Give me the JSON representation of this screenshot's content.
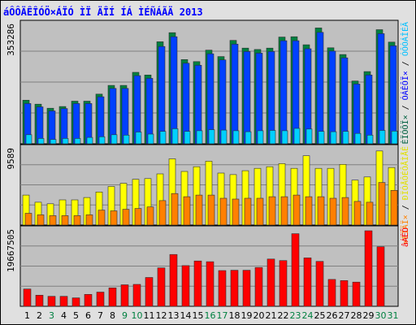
{
  "chart_data": {
    "type": "bar",
    "title": "áÔÔÄÊÎÓÖ×ÁÏÓ ÌÏ ÄÎÍ ÍÁ ÌÉÑÁÃÄ 2013",
    "categories": [
      "1",
      "2",
      "3",
      "4",
      "5",
      "6",
      "7",
      "8",
      "9",
      "10",
      "11",
      "12",
      "13",
      "14",
      "15",
      "16",
      "17",
      "18",
      "19",
      "20",
      "21",
      "22",
      "23",
      "24",
      "25",
      "26",
      "27",
      "28",
      "29",
      "30",
      "31"
    ],
    "weekend_days": [
      "3",
      "9",
      "10",
      "16",
      "17",
      "23",
      "24",
      "30",
      "31"
    ],
    "colors": {
      "background": "#e0e0e0",
      "panel": "#c0c0c0",
      "grid": "#808080",
      "title": "#0000ff",
      "day_weekday": "#000000",
      "day_weekend": "#008040"
    },
    "panels": [
      {
        "max_label": "353286",
        "ymax": 353286,
        "side_labels": [
          {
            "text": "ÈÏÓÔÏ×",
            "color": "#006040"
          },
          {
            "text": " / ",
            "color": "#000000"
          },
          {
            "text": "ÓÁÊÔÏ×",
            "color": "#0000ff"
          },
          {
            "text": " / ",
            "color": "#000000"
          },
          {
            "text": "ÓÔÒÁÎÉÃ",
            "color": "#00c0ff"
          }
        ],
        "series": [
          {
            "name": "hosts",
            "color": "#008040",
            "values": [
              130000,
              118000,
              106000,
              111000,
              127000,
              127000,
              148000,
              174000,
              174000,
              213000,
              205000,
              304000,
              331000,
              251000,
              245000,
              279000,
              260000,
              308000,
              285000,
              281000,
              285000,
              318000,
              319000,
              295000,
              345000,
              286000,
              266000,
              187000,
              215000,
              340000,
              303000
            ]
          },
          {
            "name": "sites",
            "color": "#0040ff",
            "values": [
              120000,
              110000,
              98000,
              105000,
              120000,
              120000,
              140000,
              165000,
              165000,
              203000,
              195000,
              290000,
              319000,
              240000,
              234000,
              268000,
              250000,
              297000,
              275000,
              270000,
              275000,
              307000,
              307000,
              283000,
              332000,
              276000,
              256000,
              178000,
              205000,
              328000,
              292000
            ]
          },
          {
            "name": "pages",
            "color": "#00d0ff",
            "values": [
              27000,
              16000,
              13000,
              16000,
              16000,
              19000,
              21000,
              27000,
              26000,
              35000,
              29000,
              37000,
              45000,
              37000,
              39000,
              42000,
              41000,
              39000,
              36000,
              39000,
              40000,
              39000,
              46000,
              44000,
              37000,
              36000,
              37000,
              31000,
              26000,
              40000,
              38000
            ]
          }
        ]
      },
      {
        "max_label": "9589",
        "ymax": 9589,
        "side_labels": [
          {
            "text": "×ÈÏÄÏ×",
            "color": "#ff8000"
          },
          {
            "text": " / ",
            "color": "#000000"
          },
          {
            "text": "ÐÏÓÅÔÉÔÅÌÅÊ",
            "color": "#e0e000"
          }
        ],
        "series": [
          {
            "name": "visitors",
            "color": "#ffff00",
            "values": [
              3800,
              2900,
              2700,
              3200,
              3200,
              3500,
              4200,
              4900,
              5300,
              5800,
              5900,
              6500,
              8400,
              6800,
              7400,
              8100,
              6600,
              6400,
              6900,
              7200,
              7400,
              7800,
              7200,
              8800,
              7200,
              7200,
              7700,
              5700,
              6100,
              9400,
              7300
            ]
          },
          {
            "name": "entries",
            "color": "#ff8000",
            "values": [
              1500,
              1300,
              1200,
              1200,
              1200,
              1300,
              1900,
              1800,
              2000,
              2100,
              2300,
              3100,
              4000,
              3600,
              3800,
              3800,
              3400,
              3300,
              3400,
              3400,
              3600,
              3600,
              3800,
              3600,
              3600,
              3400,
              3500,
              3000,
              2900,
              5400,
              4400
            ]
          }
        ]
      },
      {
        "max_label": "19667505",
        "ymax": 19667505,
        "side_labels": [
          {
            "text": "âÁÊÔ",
            "color": "#ff0000"
          }
        ],
        "series": [
          {
            "name": "bytes",
            "color": "#ff0000",
            "values": [
              4500000,
              2900000,
              2600000,
              2600000,
              2200000,
              3100000,
              3700000,
              4800000,
              5600000,
              5700000,
              7500000,
              10000000,
              13500000,
              10600000,
              11800000,
              11600000,
              9300000,
              9400000,
              9400000,
              10100000,
              12300000,
              11900000,
              18900000,
              12600000,
              11700000,
              7000000,
              6700000,
              6300000,
              19667505,
              15500000,
              0
            ]
          }
        ]
      }
    ]
  }
}
